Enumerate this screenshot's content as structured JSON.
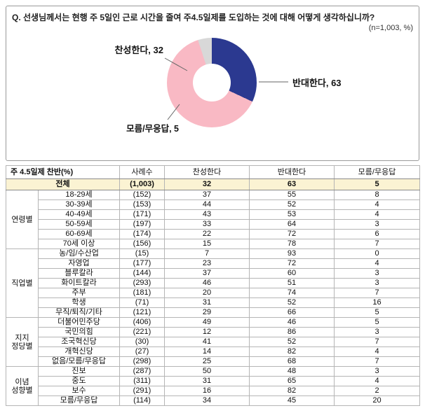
{
  "question": "Q. 선생님께서는 현행 주 5일인 근로 시간을 줄여 주4.5일제를 도입하는 것에 대해 어떻게 생각하십니까?",
  "note": "(n=1,003,  %)",
  "chart_data": [
    {
      "type": "pie",
      "donut": true,
      "start_angle": "top",
      "direction": "clockwise",
      "slices": [
        {
          "label": "찬성한다",
          "value": 32,
          "color": "#2B3990",
          "display": "찬성한다, 32"
        },
        {
          "label": "반대한다",
          "value": 63,
          "color": "#F9B9C4",
          "display": "반대한다, 63"
        },
        {
          "label": "모름/무응답",
          "value": 5,
          "color": "#D8D8D8",
          "display": "모름/무응답, 5"
        }
      ]
    },
    {
      "type": "table",
      "headers": [
        "주 4.5일제 찬반(%)",
        "사례수",
        "찬성한다",
        "반대한다",
        "모름/무응답"
      ],
      "total": {
        "label": "전체",
        "values": [
          "(1,003)",
          "32",
          "63",
          "5"
        ]
      },
      "groups": [
        {
          "name": "연령별",
          "rows": [
            [
              "18-29세",
              "(152)",
              "37",
              "55",
              "8"
            ],
            [
              "30-39세",
              "(153)",
              "44",
              "52",
              "4"
            ],
            [
              "40-49세",
              "(171)",
              "43",
              "53",
              "4"
            ],
            [
              "50-59세",
              "(197)",
              "33",
              "64",
              "3"
            ],
            [
              "60-69세",
              "(174)",
              "22",
              "72",
              "6"
            ],
            [
              "70세 이상",
              "(156)",
              "15",
              "78",
              "7"
            ]
          ]
        },
        {
          "name": "직업별",
          "rows": [
            [
              "농/임/수산업",
              "(15)",
              "7",
              "93",
              "0"
            ],
            [
              "자영업",
              "(177)",
              "23",
              "72",
              "4"
            ],
            [
              "블루칼라",
              "(144)",
              "37",
              "60",
              "3"
            ],
            [
              "화이트칼라",
              "(293)",
              "46",
              "51",
              "3"
            ],
            [
              "주부",
              "(181)",
              "20",
              "74",
              "7"
            ],
            [
              "학생",
              "(71)",
              "31",
              "52",
              "16"
            ],
            [
              "무직/퇴직/기타",
              "(121)",
              "29",
              "66",
              "5"
            ]
          ]
        },
        {
          "name": "지지\n정당별",
          "rows": [
            [
              "더불어민주당",
              "(406)",
              "49",
              "46",
              "5"
            ],
            [
              "국민의힘",
              "(221)",
              "12",
              "86",
              "3"
            ],
            [
              "조국혁신당",
              "(30)",
              "41",
              "52",
              "7"
            ],
            [
              "개혁신당",
              "(27)",
              "14",
              "82",
              "4"
            ],
            [
              "없음/모름/무응답",
              "(298)",
              "25",
              "68",
              "7"
            ]
          ]
        },
        {
          "name": "이념\n성향별",
          "rows": [
            [
              "진보",
              "(287)",
              "50",
              "48",
              "3"
            ],
            [
              "중도",
              "(311)",
              "31",
              "65",
              "4"
            ],
            [
              "보수",
              "(291)",
              "16",
              "82",
              "2"
            ],
            [
              "모름/무응답",
              "(114)",
              "34",
              "45",
              "20"
            ]
          ]
        }
      ]
    }
  ]
}
